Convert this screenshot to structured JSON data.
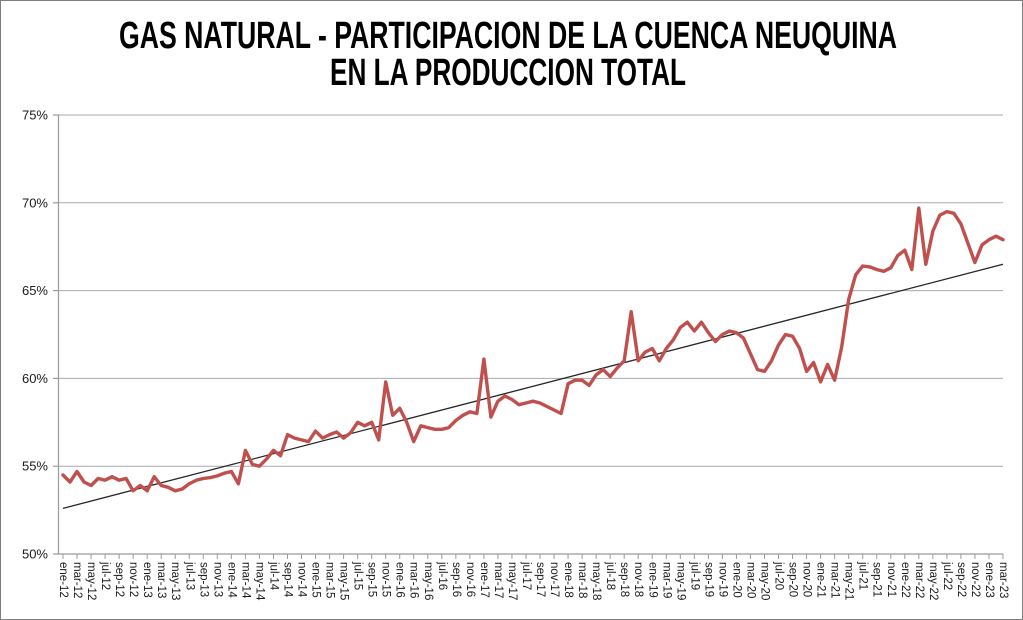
{
  "title": {
    "line1": "GAS NATURAL - PARTICIPACION DE LA CUENCA NEUQUINA",
    "line2": "EN LA PRODUCCION TOTAL"
  },
  "colors": {
    "series_red": "#C0504D",
    "trendline_black": "#262626",
    "gridline_gray": "#A9A9A9",
    "axis_gray": "#9a9a9a",
    "text_black": "#000000",
    "background": "#FFFFFF",
    "figure_border": "#7F7F7F"
  },
  "chart_data": {
    "type": "line",
    "title": "GAS NATURAL - PARTICIPACION DE LA CUENCA NEUQUINA EN LA PRODUCCION TOTAL",
    "xlabel": "",
    "ylabel": "",
    "ylim": [
      50,
      75
    ],
    "y_tick_labels": [
      "50%",
      "55%",
      "60%",
      "65%",
      "70%",
      "75%"
    ],
    "grid": true,
    "legend_position": "none",
    "period": {
      "start": "ene-12",
      "end": "mar-23",
      "frequency": "mensual"
    },
    "x_tick_labels": [
      "ene-12",
      "mar-12",
      "may-12",
      "jul-12",
      "sep-12",
      "nov-12",
      "ene-13",
      "mar-13",
      "may-13",
      "jul-13",
      "sep-13",
      "nov-13",
      "ene-14",
      "mar-14",
      "may-14",
      "jul-14",
      "sep-14",
      "nov-14",
      "ene-15",
      "mar-15",
      "may-15",
      "jul-15",
      "sep-15",
      "nov-15",
      "ene-16",
      "mar-16",
      "may-16",
      "jul-16",
      "sep-16",
      "nov-16",
      "ene-17",
      "mar-17",
      "may-17",
      "jul-17",
      "sep-17",
      "nov-17",
      "ene-18",
      "mar-18",
      "may-18",
      "jul-18",
      "sep-18",
      "nov-18",
      "ene-19",
      "mar-19",
      "may-19",
      "jul-19",
      "sep-19",
      "nov-19",
      "ene-20",
      "mar-20",
      "may-20",
      "jul-20",
      "sep-20",
      "nov-20",
      "ene-21",
      "mar-21",
      "may-21",
      "jul-21",
      "sep-21",
      "nov-21",
      "ene-22",
      "mar-22",
      "may-22",
      "jul-22",
      "sep-22",
      "nov-22",
      "ene-23",
      "mar-23"
    ],
    "x_ticks_every_n_months": 2,
    "series": [
      {
        "name": "participacion-cuenca-neuquina",
        "type": "line",
        "color": "#C0504D",
        "unit": "%",
        "values": [
          54.5,
          54.1,
          54.7,
          54.1,
          53.9,
          54.3,
          54.2,
          54.4,
          54.2,
          54.3,
          53.6,
          53.9,
          53.6,
          54.4,
          53.9,
          53.8,
          53.6,
          53.7,
          54.0,
          54.2,
          54.3,
          54.35,
          54.45,
          54.6,
          54.7,
          54.0,
          55.9,
          55.1,
          55.0,
          55.4,
          55.9,
          55.6,
          56.8,
          56.6,
          56.5,
          56.4,
          57.0,
          56.6,
          56.8,
          56.95,
          56.6,
          56.9,
          57.5,
          57.3,
          57.5,
          56.5,
          59.8,
          57.9,
          58.3,
          57.5,
          56.4,
          57.3,
          57.2,
          57.1,
          57.1,
          57.2,
          57.6,
          57.9,
          58.1,
          58.0,
          61.1,
          57.8,
          58.7,
          59.0,
          58.8,
          58.5,
          58.6,
          58.7,
          58.6,
          58.4,
          58.2,
          58.0,
          59.7,
          59.9,
          59.9,
          59.6,
          60.2,
          60.5,
          60.1,
          60.6,
          61.0,
          63.8,
          61.0,
          61.5,
          61.7,
          61.0,
          61.7,
          62.2,
          62.9,
          63.2,
          62.7,
          63.2,
          62.6,
          62.1,
          62.5,
          62.7,
          62.6,
          62.3,
          61.4,
          60.5,
          60.4,
          61.0,
          61.9,
          62.5,
          62.4,
          61.7,
          60.4,
          60.9,
          59.8,
          60.8,
          59.9,
          61.8,
          64.5,
          65.9,
          66.4,
          66.35,
          66.2,
          66.1,
          66.3,
          67.0,
          67.3,
          66.2,
          69.7,
          66.5,
          68.4,
          69.3,
          69.5,
          69.4,
          68.8,
          67.7,
          66.6,
          67.6,
          67.9,
          68.1,
          67.9
        ]
      },
      {
        "name": "tendencia-lineal",
        "type": "trendline",
        "color": "#262626",
        "unit": "%",
        "start_value": 52.6,
        "end_value": 66.5
      }
    ]
  }
}
